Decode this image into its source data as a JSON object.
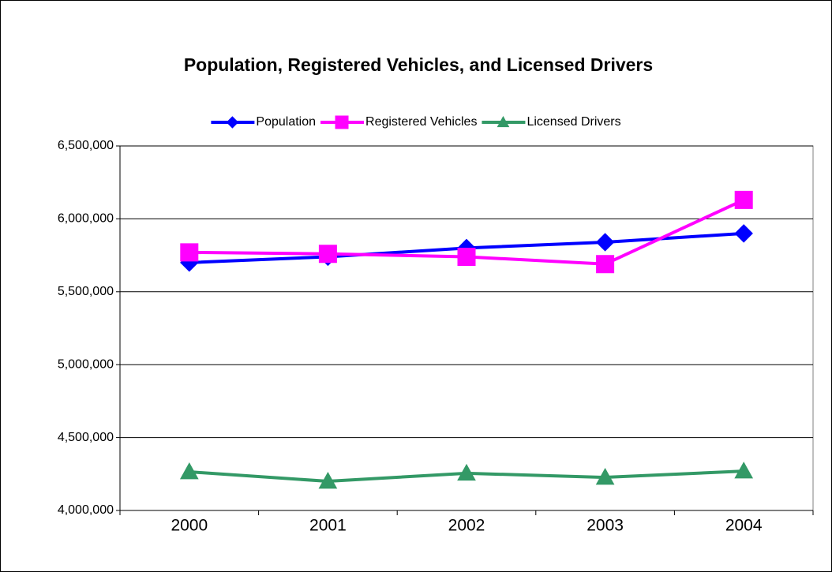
{
  "chart_data": {
    "type": "line",
    "title": "Population, Registered Vehicles, and Licensed Drivers",
    "categories": [
      "2000",
      "2001",
      "2002",
      "2003",
      "2004"
    ],
    "series": [
      {
        "name": "Population",
        "color": "#0000ff",
        "marker": "diamond",
        "values": [
          5700000,
          5740000,
          5800000,
          5840000,
          5900000
        ]
      },
      {
        "name": "Registered Vehicles",
        "color": "#ff00ff",
        "marker": "square",
        "values": [
          5770000,
          5760000,
          5740000,
          5690000,
          6130000
        ]
      },
      {
        "name": "Licensed Drivers",
        "color": "#339966",
        "marker": "triangle",
        "values": [
          4265000,
          4200000,
          4255000,
          4227000,
          4270000
        ]
      }
    ],
    "ylim": [
      4000000,
      6500000
    ],
    "yticks": [
      {
        "value": 4000000,
        "label": "4,000,000"
      },
      {
        "value": 4500000,
        "label": "4,500,000"
      },
      {
        "value": 5000000,
        "label": "5,000,000"
      },
      {
        "value": 5500000,
        "label": "5,500,000"
      },
      {
        "value": 6000000,
        "label": "6,000,000"
      },
      {
        "value": 6500000,
        "label": "6,500,000"
      }
    ],
    "grid": true,
    "legend": "top"
  }
}
